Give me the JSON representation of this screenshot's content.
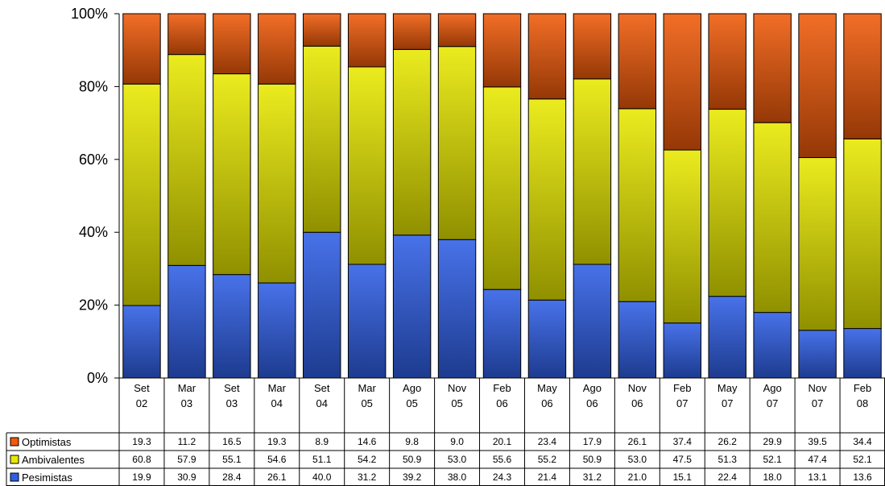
{
  "chart_data": {
    "type": "bar",
    "stacked": true,
    "normalized": true,
    "categories": [
      [
        "Set",
        "02"
      ],
      [
        "Mar",
        "03"
      ],
      [
        "Set",
        "03"
      ],
      [
        "Mar",
        "04"
      ],
      [
        "Set",
        "04"
      ],
      [
        "Mar",
        "05"
      ],
      [
        "Ago",
        "05"
      ],
      [
        "Nov",
        "05"
      ],
      [
        "Feb",
        "06"
      ],
      [
        "May",
        "06"
      ],
      [
        "Ago",
        "06"
      ],
      [
        "Nov",
        "06"
      ],
      [
        "Feb",
        "07"
      ],
      [
        "May",
        "07"
      ],
      [
        "Ago",
        "07"
      ],
      [
        "Nov",
        "07"
      ],
      [
        "Feb",
        "08"
      ]
    ],
    "series": [
      {
        "name": "Pesimistas",
        "color": "#2f5fe6",
        "values": [
          19.9,
          30.9,
          28.4,
          26.1,
          40.0,
          31.2,
          39.2,
          38.0,
          24.3,
          21.4,
          31.2,
          21.0,
          15.1,
          22.4,
          18.0,
          13.1,
          13.6
        ],
        "labels": [
          "19.9",
          "30.9",
          "28.4",
          "26.1",
          "40.0",
          "31.2",
          "39.2",
          "38.0",
          "24.3",
          "21.4",
          "31.2",
          "21.0",
          "15.1",
          "22.4",
          "18.0",
          "13.1",
          "13.6"
        ]
      },
      {
        "name": "Ambivalentes",
        "color": "#e8e800",
        "values": [
          60.8,
          57.9,
          55.1,
          54.6,
          51.1,
          54.2,
          50.9,
          53.0,
          55.6,
          55.2,
          50.9,
          53.0,
          47.5,
          51.3,
          52.1,
          47.4,
          52.1
        ],
        "labels": [
          "60.8",
          "57.9",
          "55.1",
          "54.6",
          "51.1",
          "54.2",
          "50.9",
          "53.0",
          "55.6",
          "55.2",
          "50.9",
          "53.0",
          "47.5",
          "51.3",
          "52.1",
          "47.4",
          "52.1"
        ]
      },
      {
        "name": "Optimistas",
        "color": "#f05a0a",
        "values": [
          19.3,
          11.2,
          16.5,
          19.3,
          8.9,
          14.6,
          9.8,
          9.0,
          20.1,
          23.4,
          17.9,
          26.1,
          37.4,
          26.2,
          29.9,
          39.5,
          34.4
        ],
        "labels": [
          "19.3",
          "11.2",
          "16.5",
          "19.3",
          "8.9",
          "14.6",
          "9.8",
          "9.0",
          "20.1",
          "23.4",
          "17.9",
          "26.1",
          "37.4",
          "26.2",
          "29.9",
          "39.5",
          "34.4"
        ]
      }
    ],
    "table_order": [
      "Optimistas",
      "Ambivalentes",
      "Pesimistas"
    ],
    "yticks": [
      "0%",
      "20%",
      "40%",
      "60%",
      "80%",
      "100%"
    ],
    "ylim": [
      0,
      100
    ],
    "title": "",
    "xlabel": "",
    "ylabel": "",
    "grid": false,
    "legend_placement": "data-table-left"
  }
}
